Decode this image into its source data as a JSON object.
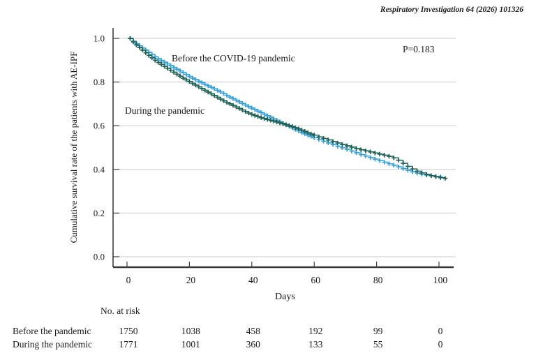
{
  "header": {
    "citation": "Respiratory Investigation 64 (2026) 101326"
  },
  "labels": {
    "y_axis": "Cumulative survival rate of the patients with AE-IPF",
    "x_axis": "Days",
    "before_curve": "Before the COVID-19 pandemic",
    "during_curve": "During the pandemic",
    "p_value": "P=0.183",
    "risk_title": "No. at risk"
  },
  "chart_data": {
    "type": "line",
    "subtype": "kaplan-meier-step-with-censor-marks",
    "title": "",
    "xlabel": "Days",
    "ylabel": "Cumulative survival rate of the patients with AE-IPF",
    "xlim": [
      0,
      105
    ],
    "ylim": [
      0.0,
      1.0
    ],
    "xticks": [
      0,
      20,
      40,
      60,
      80,
      100
    ],
    "yticks": [
      "1.0",
      "0.8",
      "0.6",
      "0.4",
      "0.2",
      "0.0"
    ],
    "grid": "horizontal",
    "legend_position": "inline-labels",
    "annotation": "P=0.183",
    "colors": {
      "before": "#36a0da",
      "during": "#1d6156",
      "grid": "#c9c9c9",
      "axis": "#3f3f3f"
    },
    "series": [
      {
        "name": "Before the COVID-19 pandemic",
        "color": "#36a0da",
        "points": [
          [
            1,
            1.0
          ],
          [
            2,
            0.987
          ],
          [
            3,
            0.976
          ],
          [
            4,
            0.966
          ],
          [
            5,
            0.956
          ],
          [
            6,
            0.946
          ],
          [
            7,
            0.936
          ],
          [
            8,
            0.926
          ],
          [
            9,
            0.916
          ],
          [
            10,
            0.907
          ],
          [
            11,
            0.899
          ],
          [
            12,
            0.891
          ],
          [
            13,
            0.883
          ],
          [
            14,
            0.875
          ],
          [
            15,
            0.867
          ],
          [
            16,
            0.859
          ],
          [
            17,
            0.851
          ],
          [
            18,
            0.843
          ],
          [
            19,
            0.835
          ],
          [
            20,
            0.826
          ],
          [
            21,
            0.818
          ],
          [
            22,
            0.811
          ],
          [
            23,
            0.804
          ],
          [
            24,
            0.797
          ],
          [
            25,
            0.79
          ],
          [
            26,
            0.783
          ],
          [
            27,
            0.776
          ],
          [
            28,
            0.769
          ],
          [
            29,
            0.762
          ],
          [
            30,
            0.755
          ],
          [
            31,
            0.747
          ],
          [
            32,
            0.739
          ],
          [
            33,
            0.731
          ],
          [
            34,
            0.724
          ],
          [
            35,
            0.717
          ],
          [
            36,
            0.71
          ],
          [
            37,
            0.702
          ],
          [
            38,
            0.695
          ],
          [
            39,
            0.688
          ],
          [
            40,
            0.681
          ],
          [
            41,
            0.674
          ],
          [
            42,
            0.667
          ],
          [
            43,
            0.66
          ],
          [
            44,
            0.653
          ],
          [
            45,
            0.646
          ],
          [
            46,
            0.639
          ],
          [
            47,
            0.632
          ],
          [
            48,
            0.625
          ],
          [
            49,
            0.618
          ],
          [
            50,
            0.611
          ],
          [
            51,
            0.604
          ],
          [
            52,
            0.597
          ],
          [
            53,
            0.59
          ],
          [
            54,
            0.583
          ],
          [
            55,
            0.576
          ],
          [
            56,
            0.569
          ],
          [
            57,
            0.563
          ],
          [
            58,
            0.557
          ],
          [
            59,
            0.551
          ],
          [
            60,
            0.545
          ],
          [
            61.5,
            0.537
          ],
          [
            63,
            0.529
          ],
          [
            64.5,
            0.521
          ],
          [
            66,
            0.514
          ],
          [
            67.5,
            0.506
          ],
          [
            69,
            0.499
          ],
          [
            70.5,
            0.492
          ],
          [
            72,
            0.484
          ],
          [
            73.5,
            0.476
          ],
          [
            75,
            0.468
          ],
          [
            76.5,
            0.461
          ],
          [
            78,
            0.454
          ],
          [
            79.5,
            0.447
          ],
          [
            81,
            0.44
          ],
          [
            82.5,
            0.433
          ],
          [
            84,
            0.426
          ],
          [
            85.5,
            0.419
          ],
          [
            87,
            0.412
          ],
          [
            88.5,
            0.404
          ],
          [
            90,
            0.396
          ],
          [
            91.5,
            0.389
          ],
          [
            93,
            0.383
          ],
          [
            94.5,
            0.378
          ],
          [
            96,
            0.374
          ],
          [
            97.5,
            0.371
          ],
          [
            99,
            0.368
          ],
          [
            100.5,
            0.366
          ]
        ]
      },
      {
        "name": "During the pandemic",
        "color": "#1d6156",
        "points": [
          [
            1,
            1.0
          ],
          [
            2,
            0.984
          ],
          [
            3,
            0.97
          ],
          [
            4,
            0.958
          ],
          [
            5,
            0.946
          ],
          [
            6,
            0.934
          ],
          [
            7,
            0.922
          ],
          [
            8,
            0.911
          ],
          [
            9,
            0.9
          ],
          [
            10,
            0.89
          ],
          [
            11,
            0.881
          ],
          [
            12,
            0.872
          ],
          [
            13,
            0.863
          ],
          [
            14,
            0.854
          ],
          [
            15,
            0.845
          ],
          [
            16,
            0.836
          ],
          [
            17,
            0.827
          ],
          [
            18,
            0.818
          ],
          [
            19,
            0.81
          ],
          [
            20,
            0.802
          ],
          [
            21,
            0.794
          ],
          [
            22,
            0.786
          ],
          [
            23,
            0.778
          ],
          [
            24,
            0.77
          ],
          [
            25,
            0.762
          ],
          [
            26,
            0.754
          ],
          [
            27,
            0.746
          ],
          [
            28,
            0.738
          ],
          [
            29,
            0.73
          ],
          [
            30,
            0.722
          ],
          [
            31,
            0.714
          ],
          [
            32,
            0.707
          ],
          [
            33,
            0.7
          ],
          [
            34,
            0.693
          ],
          [
            35,
            0.686
          ],
          [
            36,
            0.679
          ],
          [
            37,
            0.672
          ],
          [
            38,
            0.665
          ],
          [
            39,
            0.658
          ],
          [
            40,
            0.652
          ],
          [
            41,
            0.647
          ],
          [
            42,
            0.642
          ],
          [
            43,
            0.637
          ],
          [
            44,
            0.633
          ],
          [
            45,
            0.629
          ],
          [
            46,
            0.625
          ],
          [
            47,
            0.621
          ],
          [
            48,
            0.617
          ],
          [
            49,
            0.613
          ],
          [
            50,
            0.609
          ],
          [
            51,
            0.605
          ],
          [
            52,
            0.601
          ],
          [
            53,
            0.596
          ],
          [
            54,
            0.591
          ],
          [
            55,
            0.586
          ],
          [
            56,
            0.58
          ],
          [
            57,
            0.574
          ],
          [
            58,
            0.568
          ],
          [
            59,
            0.562
          ],
          [
            60,
            0.557
          ],
          [
            61.5,
            0.549
          ],
          [
            63,
            0.542
          ],
          [
            64.5,
            0.535
          ],
          [
            66,
            0.528
          ],
          [
            67.5,
            0.521
          ],
          [
            69,
            0.514
          ],
          [
            70.5,
            0.508
          ],
          [
            72,
            0.502
          ],
          [
            73.5,
            0.496
          ],
          [
            75,
            0.49
          ],
          [
            76.5,
            0.485
          ],
          [
            78,
            0.48
          ],
          [
            79.5,
            0.475
          ],
          [
            81,
            0.47
          ],
          [
            82.5,
            0.465
          ],
          [
            84,
            0.46
          ],
          [
            85.5,
            0.453
          ],
          [
            87,
            0.442
          ],
          [
            88.5,
            0.428
          ],
          [
            90,
            0.414
          ],
          [
            91.5,
            0.402
          ],
          [
            93,
            0.392
          ],
          [
            94.5,
            0.384
          ],
          [
            96,
            0.377
          ],
          [
            97.5,
            0.371
          ],
          [
            99,
            0.366
          ],
          [
            100.5,
            0.362
          ],
          [
            102,
            0.359
          ]
        ]
      }
    ],
    "risk_table": {
      "title": "No. at risk",
      "columns_days": [
        0,
        20,
        40,
        60,
        80,
        100
      ],
      "rows": [
        {
          "label": "Before the pandemic",
          "values": [
            "1750",
            "1038",
            "458",
            "192",
            "99",
            "0"
          ]
        },
        {
          "label": "During the pandemic",
          "values": [
            "1771",
            "1001",
            "360",
            "133",
            "55",
            "0"
          ]
        }
      ]
    }
  }
}
